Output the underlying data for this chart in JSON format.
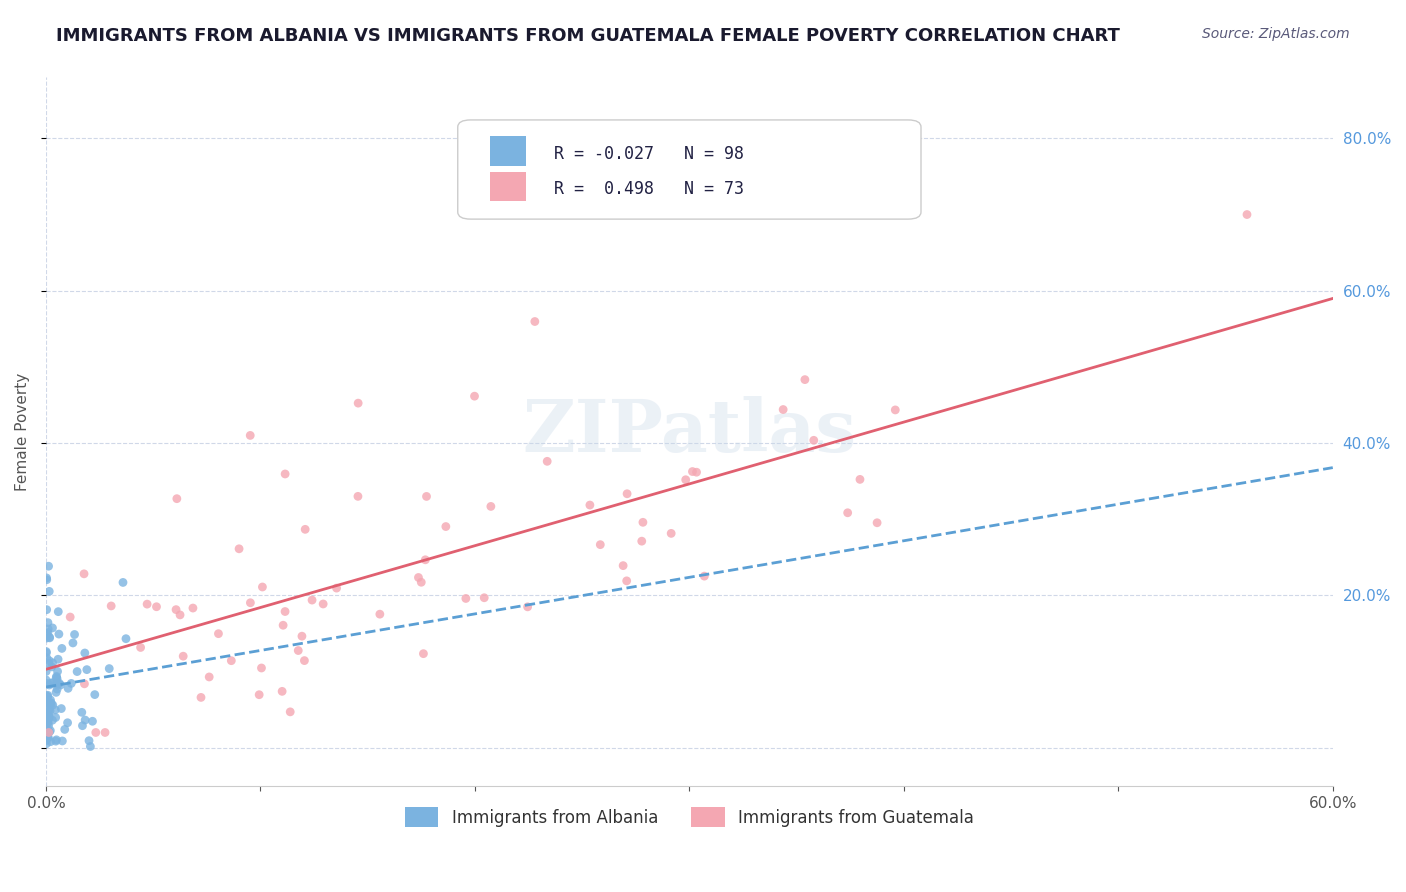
{
  "title": "IMMIGRANTS FROM ALBANIA VS IMMIGRANTS FROM GUATEMALA FEMALE POVERTY CORRELATION CHART",
  "source": "Source: ZipAtlas.com",
  "xlabel": "",
  "ylabel": "Female Poverty",
  "xlim": [
    0.0,
    0.6
  ],
  "ylim": [
    -0.05,
    0.88
  ],
  "x_ticks": [
    0.0,
    0.1,
    0.2,
    0.3,
    0.4,
    0.5,
    0.6
  ],
  "x_tick_labels": [
    "0.0%",
    "",
    "",
    "",
    "",
    "",
    "60.0%"
  ],
  "y_ticks_right": [
    0.0,
    0.2,
    0.4,
    0.6,
    0.8
  ],
  "y_tick_labels_right": [
    "",
    "20.0%",
    "40.0%",
    "60.0%",
    "80.0%"
  ],
  "albania_color": "#7bb3e0",
  "albania_color_line": "#5b9fd4",
  "guatemala_color": "#f4a7b2",
  "guatemala_color_line": "#e06070",
  "r_albania": -0.027,
  "n_albania": 98,
  "r_guatemala": 0.498,
  "n_guatemala": 73,
  "watermark": "ZIPatlas",
  "legend_label_albania": "Immigrants from Albania",
  "legend_label_guatemala": "Immigrants from Guatemala",
  "background_color": "#ffffff",
  "grid_color": "#d0d8e8",
  "title_color": "#1a1a2e",
  "source_color": "#5a5a7a",
  "stat_color": "#3355cc"
}
